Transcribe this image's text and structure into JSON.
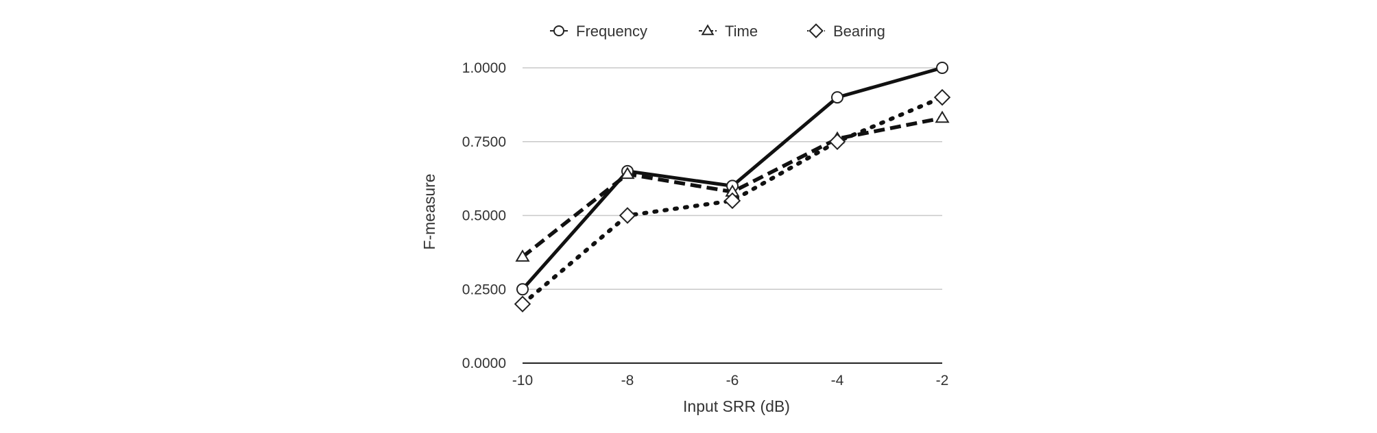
{
  "chart_data": {
    "type": "line",
    "title": "",
    "xlabel": "Input SRR (dB)",
    "ylabel": "F-measure",
    "x": [
      -10,
      -8,
      -6,
      -4,
      -2
    ],
    "x_tick_labels": [
      "-10",
      "-8",
      "-6",
      "-4",
      "-2"
    ],
    "y_ticks": [
      0,
      0.25,
      0.5,
      0.75,
      1.0
    ],
    "y_tick_labels": [
      "0.0000",
      "0.2500",
      "0.5000",
      "0.7500",
      "1.0000"
    ],
    "xlim": [
      -10,
      -2
    ],
    "ylim": [
      0,
      1.0
    ],
    "grid": true,
    "legend_position": "top",
    "series": [
      {
        "name": "Frequency",
        "marker": "circle",
        "line_style": "solid",
        "color": "#111111",
        "values": [
          0.25,
          0.65,
          0.6,
          0.9,
          1.0
        ]
      },
      {
        "name": "Time",
        "marker": "triangle",
        "line_style": "dashed",
        "color": "#111111",
        "values": [
          0.36,
          0.64,
          0.58,
          0.76,
          0.83
        ]
      },
      {
        "name": "Bearing",
        "marker": "diamond",
        "line_style": "dotted",
        "color": "#111111",
        "values": [
          0.2,
          0.5,
          0.55,
          0.75,
          0.9
        ]
      }
    ]
  }
}
